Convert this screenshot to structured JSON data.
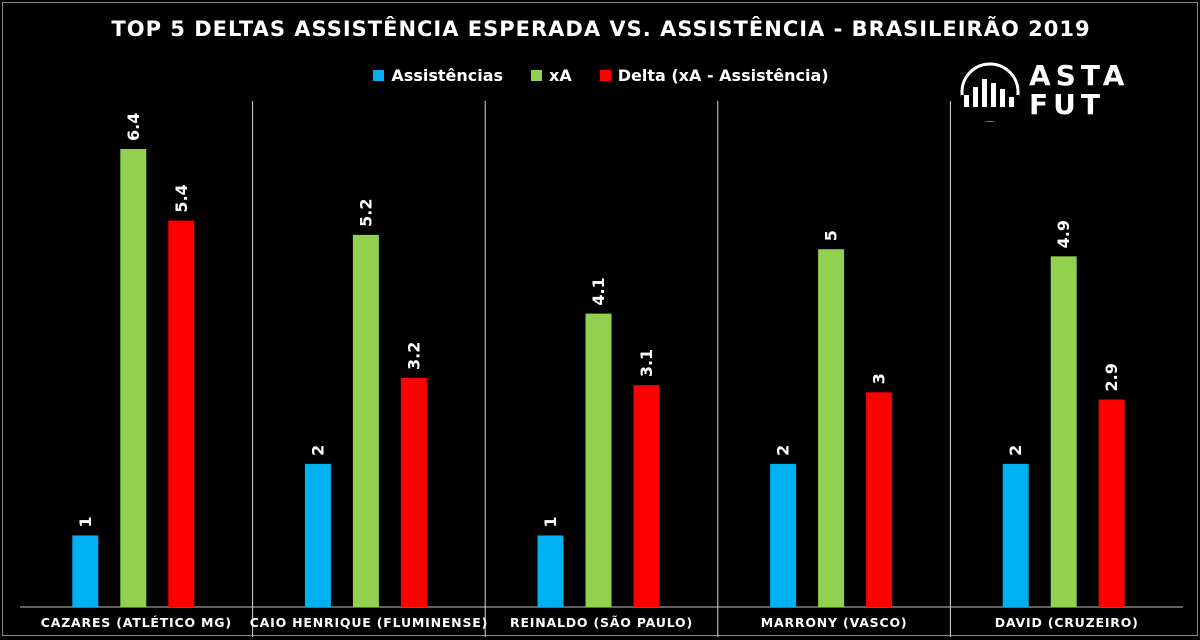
{
  "chart_data": {
    "type": "bar",
    "title": "TOP 5 DELTAS ASSISTÊNCIA ESPERADA VS. ASSISTÊNCIA - BRASILEIRÃO 2019",
    "xlabel": "",
    "ylabel": "",
    "ylim": [
      0,
      7.5
    ],
    "grid": false,
    "legend_position": "top",
    "categories": [
      "CAZARES (ATLÉTICO MG)",
      "CAIO HENRIQUE (FLUMINENSE)",
      "REINALDO (SÃO PAULO)",
      "MARRONY (VASCO)",
      "DAVID (CRUZEIRO)"
    ],
    "series": [
      {
        "name": "Assistências",
        "color": "#00b0f0",
        "values": [
          1,
          2,
          1,
          2,
          2
        ],
        "labels": [
          "1",
          "2",
          "1",
          "2",
          "2"
        ]
      },
      {
        "name": "xA",
        "color": "#92d050",
        "values": [
          6.4,
          5.2,
          4.1,
          5,
          4.9
        ],
        "labels": [
          "6.4",
          "5.2",
          "4.1",
          "5",
          "4.9"
        ]
      },
      {
        "name": "Delta (xA - Assistência)",
        "color": "#ff0000",
        "values": [
          5.4,
          3.2,
          3.1,
          3,
          2.9
        ],
        "labels": [
          "5.4",
          "3.2",
          "3.1",
          "3",
          "2.9"
        ]
      }
    ]
  },
  "logo": {
    "line1": "ASTA",
    "line2": "FUT"
  }
}
